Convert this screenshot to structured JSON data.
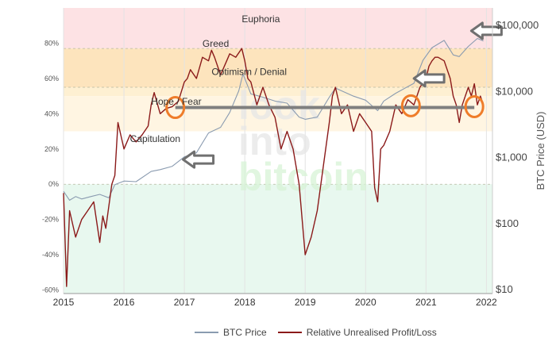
{
  "chart_data": {
    "type": "line",
    "x_ticks": [
      "2015",
      "2016",
      "2017",
      "2018",
      "2019",
      "2020",
      "2021",
      "2022"
    ],
    "y_left": {
      "ticks": [
        "-60%",
        "-40%",
        "-20%",
        "0%",
        "20%",
        "40%",
        "60%",
        "80%"
      ],
      "tick_values": [
        -0.6,
        -0.4,
        -0.2,
        0.0,
        0.2,
        0.4,
        0.6,
        0.8
      ],
      "range": [
        -0.62,
        1.0
      ]
    },
    "y_right": {
      "title": "BTC Price (USD)",
      "scale": "log",
      "ticks": [
        "$10",
        "$100",
        "$1,000",
        "$10,000",
        "$100,000"
      ],
      "tick_values": [
        10,
        100,
        1000,
        10000,
        100000
      ],
      "range": [
        8.5,
        180000
      ]
    },
    "zones": [
      {
        "label": "Euphoria",
        "from": 0.77,
        "to": 1.0,
        "color": "#fde2e4"
      },
      {
        "label": "Greed",
        "from": 0.55,
        "to": 0.77,
        "color": "#fde4bd"
      },
      {
        "label": "Optimism / Denial",
        "from": 0.5,
        "to": 0.55,
        "color": "#fef0d2"
      },
      {
        "label": "Hope / Fear",
        "from": 0.3,
        "to": 0.5,
        "color": "#fff5e2"
      },
      {
        "label": "Capitulation",
        "from": 0.0,
        "to": 0.3,
        "color": "#ffffff"
      },
      {
        "label": "",
        "from": -0.62,
        "to": 0.0,
        "color": "#e8f8ef"
      }
    ],
    "series": [
      {
        "name": "BTC Price",
        "color": "#8a9bb0",
        "axis": "right",
        "x": [
          2015.0,
          2015.1,
          2015.2,
          2015.3,
          2015.45,
          2015.6,
          2015.75,
          2015.85,
          2016.0,
          2016.2,
          2016.45,
          2016.6,
          2016.8,
          2017.0,
          2017.2,
          2017.4,
          2017.6,
          2017.75,
          2017.9,
          2017.97,
          2018.1,
          2018.3,
          2018.5,
          2018.7,
          2018.9,
          2019.0,
          2019.2,
          2019.4,
          2019.5,
          2019.8,
          2020.0,
          2020.2,
          2020.3,
          2020.5,
          2020.8,
          2020.95,
          2021.1,
          2021.3,
          2021.45,
          2021.55,
          2021.7,
          2021.85,
          2021.95
        ],
        "y": [
          300,
          220,
          250,
          230,
          250,
          270,
          240,
          380,
          430,
          420,
          600,
          640,
          720,
          1000,
          1150,
          2300,
          2800,
          4700,
          10000,
          18000,
          9000,
          8000,
          7000,
          6500,
          4000,
          3700,
          4000,
          8000,
          11000,
          8300,
          7200,
          5000,
          7000,
          9200,
          13000,
          29000,
          45000,
          58000,
          35000,
          33000,
          47000,
          62000,
          57000
        ]
      },
      {
        "name": "Relative Unrealised Profit/Loss",
        "color": "#8b1a1a",
        "axis": "left",
        "x": [
          2015.0,
          2015.05,
          2015.1,
          2015.2,
          2015.3,
          2015.4,
          2015.5,
          2015.6,
          2015.65,
          2015.7,
          2015.8,
          2015.85,
          2015.9,
          2016.0,
          2016.1,
          2016.2,
          2016.3,
          2016.4,
          2016.45,
          2016.5,
          2016.6,
          2016.7,
          2016.8,
          2016.9,
          2017.0,
          2017.05,
          2017.1,
          2017.2,
          2017.3,
          2017.4,
          2017.45,
          2017.5,
          2017.6,
          2017.7,
          2017.75,
          2017.85,
          2017.95,
          2018.0,
          2018.05,
          2018.1,
          2018.2,
          2018.3,
          2018.4,
          2018.5,
          2018.6,
          2018.7,
          2018.8,
          2018.9,
          2018.95,
          2019.0,
          2019.1,
          2019.2,
          2019.3,
          2019.4,
          2019.45,
          2019.5,
          2019.6,
          2019.7,
          2019.8,
          2019.9,
          2020.0,
          2020.1,
          2020.15,
          2020.2,
          2020.25,
          2020.3,
          2020.4,
          2020.5,
          2020.6,
          2020.7,
          2020.8,
          2020.9,
          2021.0,
          2021.05,
          2021.1,
          2021.15,
          2021.2,
          2021.3,
          2021.4,
          2021.45,
          2021.5,
          2021.55,
          2021.6,
          2021.7,
          2021.75,
          2021.8,
          2021.85,
          2021.9,
          2021.95
        ],
        "y": [
          -0.05,
          -0.58,
          -0.15,
          -0.3,
          -0.2,
          -0.15,
          -0.1,
          -0.33,
          -0.18,
          -0.25,
          0.0,
          0.05,
          0.35,
          0.2,
          0.28,
          0.24,
          0.28,
          0.33,
          0.45,
          0.52,
          0.4,
          0.43,
          0.44,
          0.47,
          0.58,
          0.6,
          0.65,
          0.6,
          0.72,
          0.7,
          0.76,
          0.72,
          0.62,
          0.7,
          0.74,
          0.72,
          0.77,
          0.7,
          0.6,
          0.58,
          0.45,
          0.55,
          0.45,
          0.38,
          0.2,
          0.3,
          0.2,
          0.0,
          -0.2,
          -0.4,
          -0.3,
          -0.15,
          0.1,
          0.35,
          0.5,
          0.55,
          0.4,
          0.45,
          0.3,
          0.4,
          0.35,
          0.3,
          -0.02,
          -0.1,
          0.2,
          0.22,
          0.3,
          0.45,
          0.4,
          0.48,
          0.45,
          0.55,
          0.6,
          0.67,
          0.7,
          0.72,
          0.72,
          0.7,
          0.6,
          0.5,
          0.45,
          0.35,
          0.45,
          0.55,
          0.5,
          0.57,
          0.45,
          0.5,
          0.45
        ]
      }
    ],
    "annotations": {
      "horizontal_line": {
        "from_year": 2016.85,
        "to_year": 2021.8,
        "value": 0.435,
        "color": "#7f7f7f"
      },
      "circles": [
        {
          "year": 2016.85,
          "value": 0.435
        },
        {
          "year": 2020.75,
          "value": 0.445
        },
        {
          "year": 2021.8,
          "value": 0.44
        }
      ],
      "arrows": [
        {
          "year": 2016.98,
          "value": 0.14,
          "pointing": "left"
        },
        {
          "year": 2020.8,
          "value": 0.6,
          "pointing": "left"
        },
        {
          "year": 2021.75,
          "value": 0.87,
          "pointing": "left"
        }
      ]
    },
    "watermark": [
      "look",
      "into",
      "bitcoin"
    ],
    "legend_placement": "bottom",
    "grid": true
  }
}
